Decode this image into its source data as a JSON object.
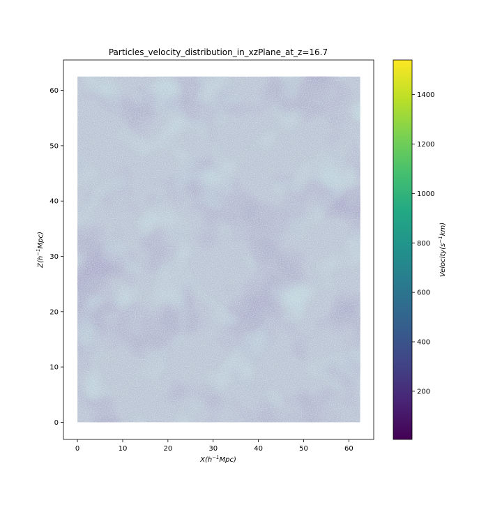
{
  "chart_data": {
    "type": "scatter",
    "title": "Particles_velocity_distribution_in_xzPlane_at_z=16.7",
    "xlabel": "X(h^{-1}Mpc)",
    "ylabel": "Z(h^{-1}Mpc)",
    "xlim": [
      -3.1,
      65.5
    ],
    "ylim": [
      -3.1,
      65.5
    ],
    "xticks": [
      0,
      10,
      20,
      30,
      40,
      50,
      60
    ],
    "yticks": [
      0,
      10,
      20,
      30,
      40,
      50,
      60
    ],
    "points_extent": {
      "x": [
        0,
        62.5
      ],
      "z": [
        0,
        62.5
      ]
    },
    "colorbar": {
      "label": "Velocity(s^{-1}km)",
      "colormap": "viridis",
      "range": [
        5,
        1540
      ],
      "ticks": [
        200,
        400,
        600,
        800,
        1000,
        1200,
        1400
      ]
    },
    "background_tint": "#b8c3d3",
    "grid": false
  }
}
